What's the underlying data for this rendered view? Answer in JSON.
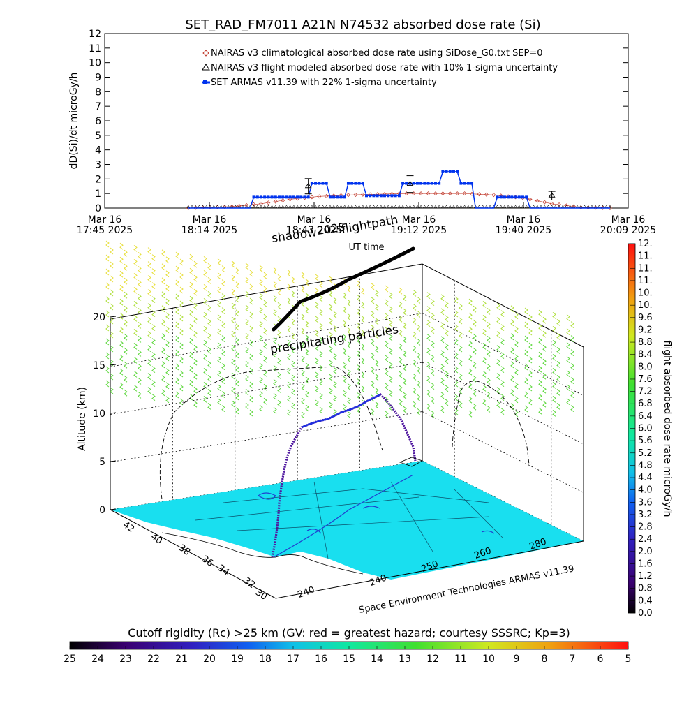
{
  "title": "SET_RAD_FM7011   A21N N74532 absorbed dose rate (Si)",
  "top_chart": {
    "ylabel": "dD(Si)/dt microGy/h",
    "xlabel": "UT time",
    "y_ticks": [
      "0",
      "1",
      "2",
      "3",
      "4",
      "5",
      "6",
      "7",
      "8",
      "9",
      "10",
      "11",
      "12"
    ],
    "x_ticks": [
      {
        "line1": "Mar 16",
        "line2": "17:45 2025"
      },
      {
        "line1": "Mar 16",
        "line2": "18:14 2025"
      },
      {
        "line1": "Mar 16",
        "line2": "18:43 2025"
      },
      {
        "line1": "Mar 16",
        "line2": "19:12 2025"
      },
      {
        "line1": "Mar 16",
        "line2": "19:40 2025"
      },
      {
        "line1": "Mar 16",
        "line2": "20:09 2025"
      }
    ],
    "legend": [
      {
        "symbol": "diamond",
        "color": "#c0392b",
        "label": "NAIRAS v3 climatological absorbed dose rate using SiDose_G0.txt SEP=0"
      },
      {
        "symbol": "triangle",
        "color": "#000000",
        "label": "NAIRAS v3 flight modeled absorbed dose rate with 10% 1-sigma uncertainty"
      },
      {
        "symbol": "square",
        "color": "#0033ee",
        "label": "SET ARMAS v11.39 with 22% 1-sigma uncertainty"
      }
    ]
  },
  "chart_data": [
    {
      "type": "line",
      "title": "SET_RAD_FM7011   A21N N74532 absorbed dose rate (Si)",
      "xlabel": "UT time",
      "ylabel": "dD(Si)/dt microGy/h",
      "xlim": [
        "17:45",
        "20:09"
      ],
      "ylim": [
        0,
        12
      ],
      "series": [
        {
          "name": "NAIRAS v3 climatological absorbed dose rate using SiDose_G0.txt SEP=0",
          "x": [
            "18:08",
            "18:20",
            "18:28",
            "18:36",
            "18:44",
            "18:52",
            "19:00",
            "19:08",
            "19:16",
            "19:24",
            "19:32",
            "19:40",
            "19:48",
            "19:56",
            "20:04"
          ],
          "y": [
            0.0,
            0.1,
            0.3,
            0.6,
            0.8,
            0.9,
            0.95,
            1.0,
            1.0,
            1.0,
            0.9,
            0.7,
            0.3,
            0.05,
            0.0
          ]
        },
        {
          "name": "NAIRAS v3 flight modeled absorbed dose rate with 10% 1-sigma uncertainty",
          "x": [
            "18:41",
            "19:09",
            "19:48"
          ],
          "y": [
            1.5,
            1.65,
            0.85
          ]
        },
        {
          "name": "SET ARMAS v11.39 with 22% 1-sigma uncertainty",
          "x": [
            "18:08",
            "18:25",
            "18:26",
            "18:41",
            "18:42",
            "18:46",
            "18:47",
            "18:51",
            "18:52",
            "18:56",
            "18:57",
            "19:06",
            "19:07",
            "19:08",
            "19:09",
            "19:17",
            "19:18",
            "19:22",
            "19:23",
            "19:26",
            "19:27",
            "19:32",
            "19:33",
            "19:41",
            "19:42",
            "19:51",
            "19:52",
            "20:04"
          ],
          "y": [
            0.0,
            0.0,
            0.75,
            0.75,
            1.7,
            1.7,
            0.75,
            0.75,
            1.7,
            1.7,
            0.85,
            0.85,
            1.7,
            1.7,
            1.7,
            1.7,
            2.5,
            2.5,
            1.7,
            1.7,
            0.0,
            0.0,
            0.75,
            0.75,
            0.0,
            0.0,
            0.0,
            0.0
          ]
        }
      ]
    },
    {
      "type": "heatmap",
      "title": "",
      "ylabel": "Altitude (km)",
      "z_ticks": [
        "0",
        "5",
        "10",
        "15",
        "20"
      ],
      "lat_ticks": [
        "30",
        "32",
        "34",
        "36",
        "38",
        "40",
        "42"
      ],
      "lon_ticks": [
        "240",
        "240",
        "250",
        "260",
        "280"
      ],
      "annotations": [
        "shadow",
        "2025",
        "flightpath",
        "precipitating particles"
      ]
    }
  ],
  "colorbar_right": {
    "label": "flight absorbed dose rate microGy/h",
    "ticks": [
      "0.0",
      "0.4",
      "0.8",
      "1.2",
      "1.6",
      "2.0",
      "2.4",
      "2.8",
      "3.2",
      "3.6",
      "4.0",
      "4.4",
      "4.8",
      "5.2",
      "5.6",
      "6.0",
      "6.4",
      "6.8",
      "7.2",
      "7.6",
      "8.0",
      "8.4",
      "8.8",
      "9.2",
      "9.6",
      "10.",
      "10.",
      "11.",
      "11.",
      "11.",
      "12."
    ]
  },
  "colorbar_bottom": {
    "label": "Cutoff rigidity (Rc) >25 km (GV: red = greatest hazard; courtesy SSSRC; Kp=3)",
    "ticks": [
      "25",
      "24",
      "23",
      "22",
      "21",
      "20",
      "19",
      "18",
      "17",
      "16",
      "15",
      "14",
      "13",
      "12",
      "11",
      "10",
      "9",
      "8",
      "7",
      "6",
      "5"
    ]
  },
  "credit": "Space Environment Technologies ARMAS v11.39",
  "colors": {
    "nairas_clim": "#c0392b",
    "nairas_flight": "#000000",
    "armas": "#0033ee",
    "map_sea": "#19dfef",
    "altitude_line_wall": "#000000"
  }
}
